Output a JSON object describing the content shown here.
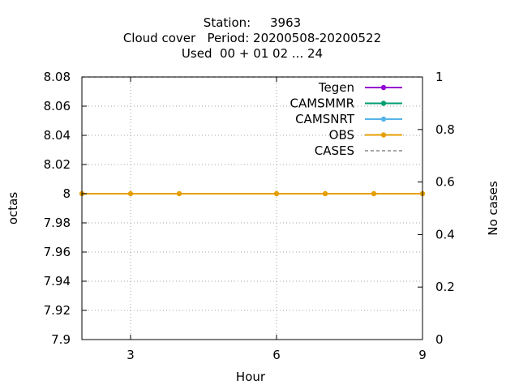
{
  "chart_data": {
    "type": "line",
    "title_lines": [
      "Station:     3963",
      "Cloud cover   Period: 20200508-20200522",
      "Used  00 + 01 02 ... 24"
    ],
    "xlabel": "Hour",
    "ylabel": "octas",
    "y2label": "No cases",
    "xlim": [
      2,
      9
    ],
    "ylim": [
      7.9,
      8.08
    ],
    "y2lim": [
      0,
      1
    ],
    "xticks": [
      3,
      6,
      9
    ],
    "yticks": [
      7.9,
      7.92,
      7.94,
      7.96,
      7.98,
      8,
      8.02,
      8.04,
      8.06,
      8.08
    ],
    "y2ticks": [
      0,
      0.2,
      0.4,
      0.6,
      0.8,
      1
    ],
    "grid": true,
    "legend_position": "top-right",
    "series": [
      {
        "name": "Tegen",
        "color": "#9400d3",
        "style": "line-points",
        "x": [],
        "y": []
      },
      {
        "name": "CAMSMMR",
        "color": "#009e73",
        "style": "line-points",
        "x": [],
        "y": []
      },
      {
        "name": "CAMSNRT",
        "color": "#56b4e9",
        "style": "line-points",
        "x": [],
        "y": []
      },
      {
        "name": "OBS",
        "color": "#e69f00",
        "style": "line-points",
        "x": [
          2,
          3,
          4,
          6,
          7,
          8,
          9
        ],
        "y": [
          8,
          8,
          8,
          8,
          8,
          8,
          8
        ]
      },
      {
        "name": "CASES",
        "color": "#888888",
        "style": "dashed",
        "axis": "y2",
        "x": [
          2,
          9
        ],
        "y": [
          1,
          1
        ]
      }
    ]
  }
}
